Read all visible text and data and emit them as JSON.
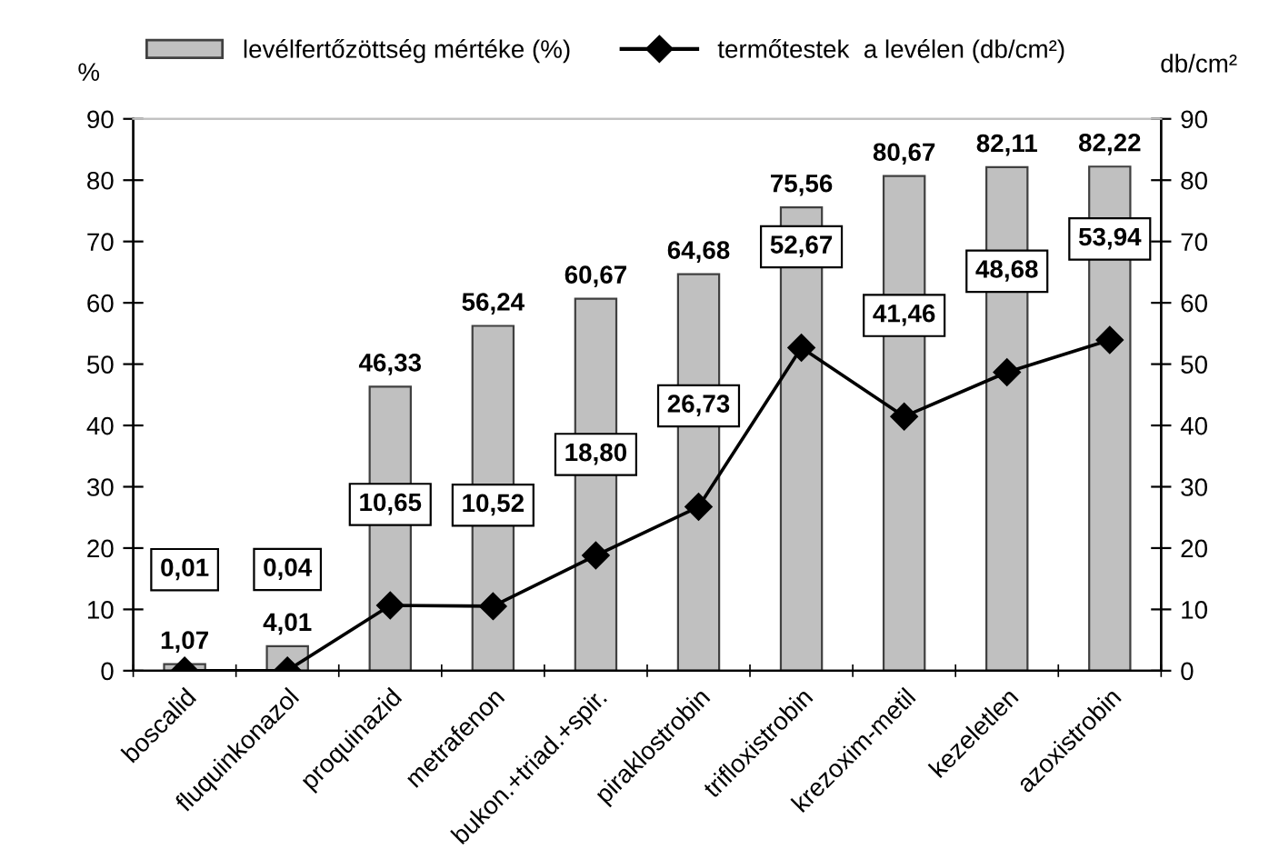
{
  "chart_data": {
    "type": "bar",
    "categories": [
      "boscalid",
      "fluquinkonazol",
      "proquinazid",
      "metrafenon",
      "bukon.+triad.+spir.",
      "piraklostrobin",
      "trifloxistrobin",
      "krezoxim-metil",
      "kezeletlen",
      "azoxistrobin"
    ],
    "series": [
      {
        "name": "levélfertőzöttség mértéke (%)",
        "color": "#c0c0c0",
        "values": [
          1.07,
          4.01,
          46.33,
          56.24,
          60.67,
          64.68,
          75.56,
          80.67,
          82.11,
          82.22
        ],
        "value_labels": [
          "1,07",
          "4,01",
          "46,33",
          "56,24",
          "60,67",
          "64,68",
          "75,56",
          "80,67",
          "82,11",
          "82,22"
        ]
      },
      {
        "name": "termőtestek  a levélen (db/cm²)",
        "type": "line",
        "color": "#000000",
        "marker": "diamond",
        "values": [
          0.01,
          0.04,
          10.65,
          10.52,
          18.8,
          26.73,
          52.67,
          41.46,
          48.68,
          53.94
        ],
        "value_labels": [
          "0,01",
          "0,04",
          "10,65",
          "10,52",
          "18,80",
          "26,73",
          "52,67",
          "41,46",
          "48,68",
          "53,94"
        ]
      }
    ],
    "ylabel": "%",
    "y2label": "db/cm²",
    "ylim": [
      0,
      90
    ],
    "yticks": [
      0,
      10,
      20,
      30,
      40,
      50,
      60,
      70,
      80,
      90
    ],
    "y2lim": [
      0,
      90
    ],
    "y2ticks": [
      0,
      10,
      20,
      30,
      40,
      50,
      60,
      70,
      80,
      90
    ],
    "legend": "top",
    "grid": false
  }
}
